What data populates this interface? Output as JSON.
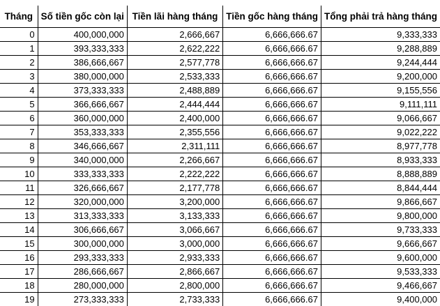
{
  "table": {
    "headers": [
      "Tháng",
      "Số tiền gốc còn lại",
      "Tiền lãi hàng tháng",
      "Tiền gốc hàng tháng",
      "Tổng phải trả hàng tháng"
    ],
    "rows": [
      [
        "0",
        "400,000,000",
        "2,666,667",
        "6,666,666.67",
        "9,333,333"
      ],
      [
        "1",
        "393,333,333",
        "2,622,222",
        "6,666,666.67",
        "9,288,889"
      ],
      [
        "2",
        "386,666,667",
        "2,577,778",
        "6,666,666.67",
        "9,244,444"
      ],
      [
        "3",
        "380,000,000",
        "2,533,333",
        "6,666,666.67",
        "9,200,000"
      ],
      [
        "4",
        "373,333,333",
        "2,488,889",
        "6,666,666.67",
        "9,155,556"
      ],
      [
        "5",
        "366,666,667",
        "2,444,444",
        "6,666,666.67",
        "9,111,111"
      ],
      [
        "6",
        "360,000,000",
        "2,400,000",
        "6,666,666.67",
        "9,066,667"
      ],
      [
        "7",
        "353,333,333",
        "2,355,556",
        "6,666,666.67",
        "9,022,222"
      ],
      [
        "8",
        "346,666,667",
        "2,311,111",
        "6,666,666.67",
        "8,977,778"
      ],
      [
        "9",
        "340,000,000",
        "2,266,667",
        "6,666,666.67",
        "8,933,333"
      ],
      [
        "10",
        "333,333,333",
        "2,222,222",
        "6,666,666.67",
        "8,888,889"
      ],
      [
        "11",
        "326,666,667",
        "2,177,778",
        "6,666,666.67",
        "8,844,444"
      ],
      [
        "12",
        "320,000,000",
        "3,200,000",
        "6,666,666.67",
        "9,866,667"
      ],
      [
        "13",
        "313,333,333",
        "3,133,333",
        "6,666,666.67",
        "9,800,000"
      ],
      [
        "14",
        "306,666,667",
        "3,066,667",
        "6,666,666.67",
        "9,733,333"
      ],
      [
        "15",
        "300,000,000",
        "3,000,000",
        "6,666,666.67",
        "9,666,667"
      ],
      [
        "16",
        "293,333,333",
        "2,933,333",
        "6,666,666.67",
        "9,600,000"
      ],
      [
        "17",
        "286,666,667",
        "2,866,667",
        "6,666,666.67",
        "9,533,333"
      ],
      [
        "18",
        "280,000,000",
        "2,800,000",
        "6,666,666.67",
        "9,466,667"
      ],
      [
        "19",
        "273,333,333",
        "2,733,333",
        "6,666,666.67",
        "9,400,000"
      ]
    ]
  }
}
